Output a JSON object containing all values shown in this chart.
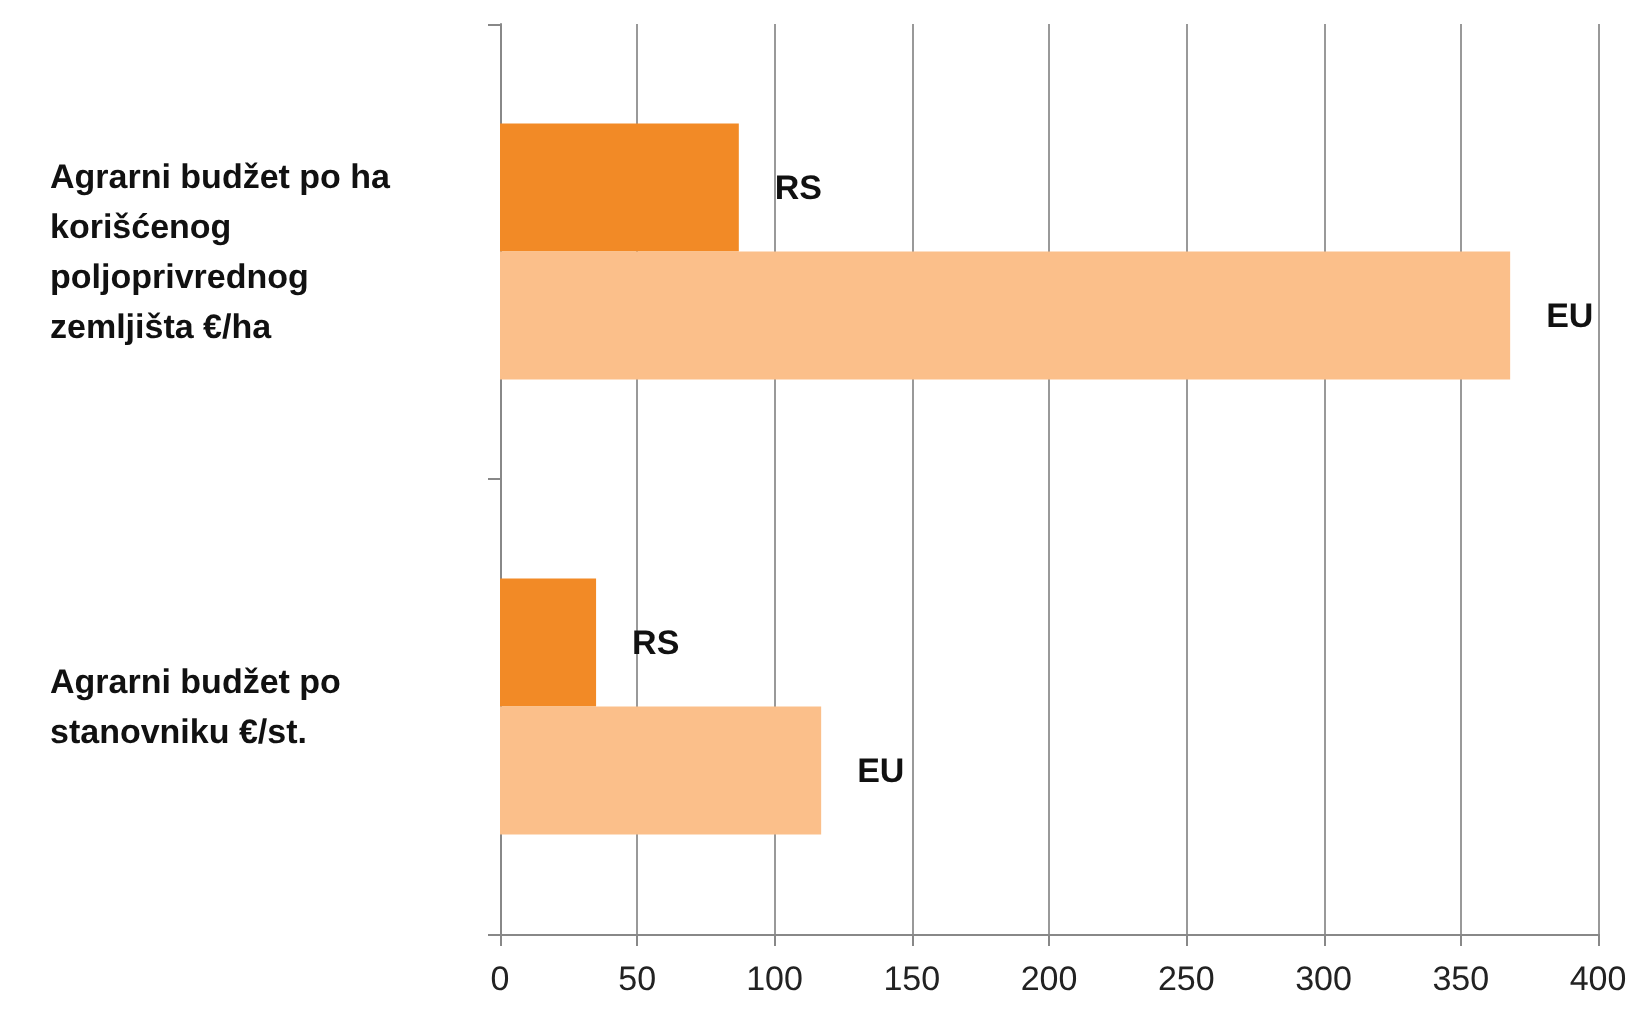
{
  "chart_data": {
    "type": "bar",
    "orientation": "horizontal",
    "categories": [
      "Agrarni budžet po ha korišćenog poljoprivrednog zemljišta €/ha",
      "Agrarni budžet po stanovniku €/st."
    ],
    "series": [
      {
        "name": "RS",
        "color": "#f28a26",
        "values": [
          87,
          35
        ]
      },
      {
        "name": "EU",
        "color": "#fbbf8a",
        "values": [
          368,
          117
        ]
      }
    ],
    "xlim": [
      0,
      400
    ],
    "xticks": [
      0,
      50,
      100,
      150,
      200,
      250,
      300,
      350,
      400
    ],
    "grid": "x",
    "legend": false
  }
}
